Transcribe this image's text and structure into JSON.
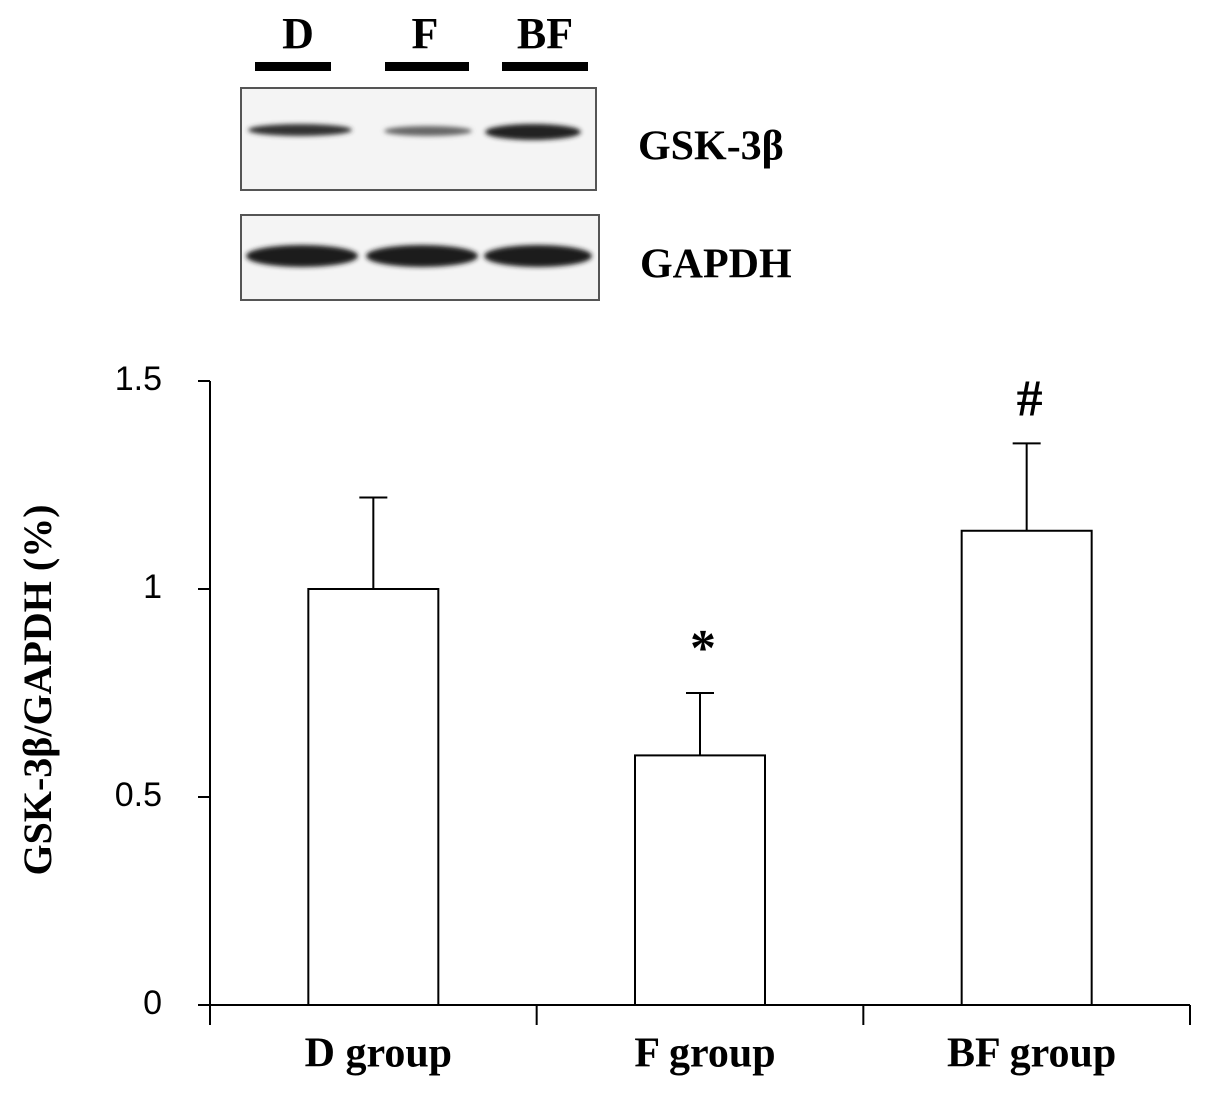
{
  "blot": {
    "lanes": [
      "D",
      "F",
      "BF"
    ],
    "proteins": [
      "GSK-3β",
      "GAPDH"
    ]
  },
  "chart_data": {
    "type": "bar",
    "y_label": "GSK-3β/GAPDH (%)",
    "categories": [
      "D group",
      "F group",
      "BF group"
    ],
    "values": [
      1.0,
      0.6,
      1.14
    ],
    "errors": [
      0.22,
      0.15,
      0.21
    ],
    "color": "#ffffff",
    "ylim": [
      0,
      1.5
    ],
    "yticks": [
      0,
      0.5,
      1,
      1.5
    ],
    "annotations": [
      {
        "category": "F group",
        "text": "*"
      },
      {
        "category": "BF group",
        "text": "#"
      }
    ]
  }
}
